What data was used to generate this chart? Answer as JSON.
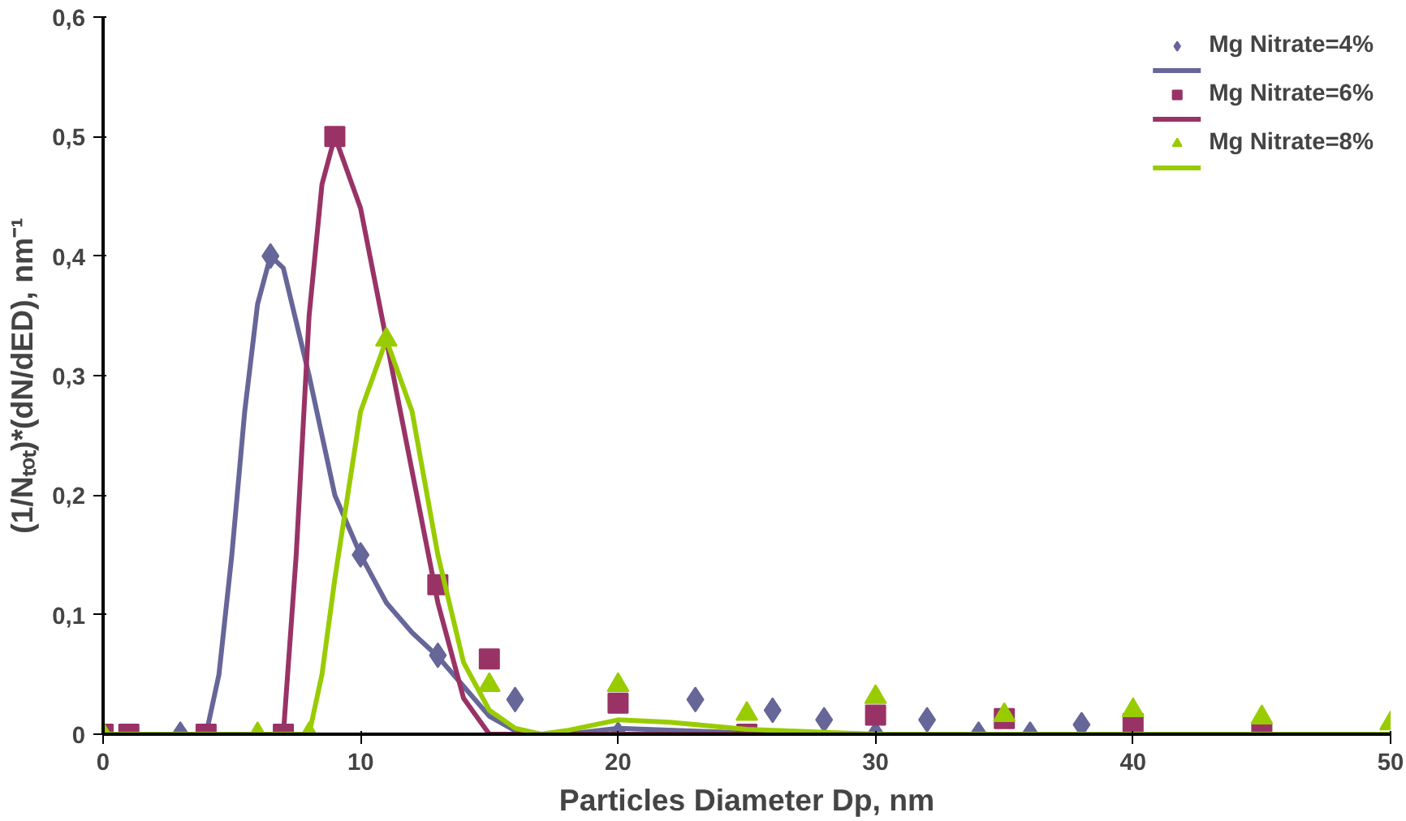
{
  "chart_data": {
    "type": "scatter",
    "xlabel": "Particles Diameter Dp, nm",
    "ylabel": "(1/Nₜₒₜ)*(dN/dED), nm⁻¹",
    "xlim": [
      0,
      50
    ],
    "xticks": [
      0,
      10,
      20,
      30,
      40,
      50
    ],
    "ylim": [
      0,
      0.6
    ],
    "yticks": [
      {
        "value": 0,
        "label": "0"
      },
      {
        "value": 0.1,
        "label": "0,1"
      },
      {
        "value": 0.2,
        "label": "0,2"
      },
      {
        "value": 0.3,
        "label": "0,3"
      },
      {
        "value": 0.4,
        "label": "0,4"
      },
      {
        "value": 0.5,
        "label": "0,5"
      },
      {
        "value": 0.6,
        "label": "0,6"
      }
    ],
    "grid": false,
    "legend": "top right",
    "series": [
      {
        "name": "Mg Nitrate=4%",
        "color": "#666699",
        "marker": "diamond",
        "x": [
          3,
          6.5,
          10,
          13,
          16,
          20,
          23,
          26,
          28,
          30,
          32,
          34,
          36,
          38
        ],
        "values": [
          0,
          0.4,
          0.15,
          0.066,
          0.029,
          null,
          0.029,
          0.02,
          0.012,
          null,
          0.012,
          0,
          0,
          0.008
        ]
      },
      {
        "type": "line",
        "color": "#666699",
        "x": [
          0,
          4,
          4.5,
          5,
          5.5,
          6,
          6.5,
          7,
          8,
          9,
          10,
          11,
          12,
          13,
          14,
          15,
          16,
          17,
          18,
          20,
          25,
          30,
          50
        ],
        "values": [
          0,
          0,
          0.05,
          0.15,
          0.27,
          0.36,
          0.4,
          0.39,
          0.3,
          0.2,
          0.15,
          0.11,
          0.085,
          0.065,
          0.04,
          0.015,
          0.003,
          0,
          0,
          0.005,
          0.001,
          0,
          0
        ]
      },
      {
        "name": "Mg Nitrate=6%",
        "color": "#993366",
        "marker": "square",
        "x": [
          0,
          1,
          4,
          7,
          9,
          13,
          15,
          20,
          25,
          30,
          35,
          40,
          45
        ],
        "values": [
          0,
          0,
          0,
          0,
          0.5,
          0.125,
          0.063,
          0.026,
          null,
          0.016,
          0.013,
          0.009,
          0
        ]
      },
      {
        "type": "line",
        "color": "#993366",
        "x": [
          0,
          7,
          7.5,
          8,
          8.5,
          9,
          10,
          11,
          12,
          13,
          14,
          15,
          20,
          50
        ],
        "values": [
          0,
          0,
          0.15,
          0.35,
          0.46,
          0.5,
          0.44,
          0.33,
          0.22,
          0.11,
          0.03,
          0,
          0,
          0
        ]
      },
      {
        "name": "Mg Nitrate=8%",
        "color": "#99cc00",
        "marker": "triangle",
        "x": [
          0,
          6,
          8,
          11,
          15,
          20,
          25,
          30,
          35,
          40,
          45,
          50
        ],
        "values": [
          0,
          0,
          0,
          0.33,
          0.041,
          0.041,
          0.017,
          0.031,
          0.016,
          0.02,
          0.014,
          0.009
        ]
      },
      {
        "type": "line",
        "color": "#99cc00",
        "x": [
          0,
          8,
          8.5,
          9,
          10,
          11,
          12,
          13,
          14,
          15,
          16,
          17,
          18,
          20,
          22,
          25,
          30,
          50
        ],
        "values": [
          0,
          0,
          0.05,
          0.13,
          0.27,
          0.33,
          0.27,
          0.15,
          0.06,
          0.02,
          0.005,
          0,
          0.003,
          0.012,
          0.01,
          0.004,
          0,
          0
        ]
      }
    ]
  }
}
